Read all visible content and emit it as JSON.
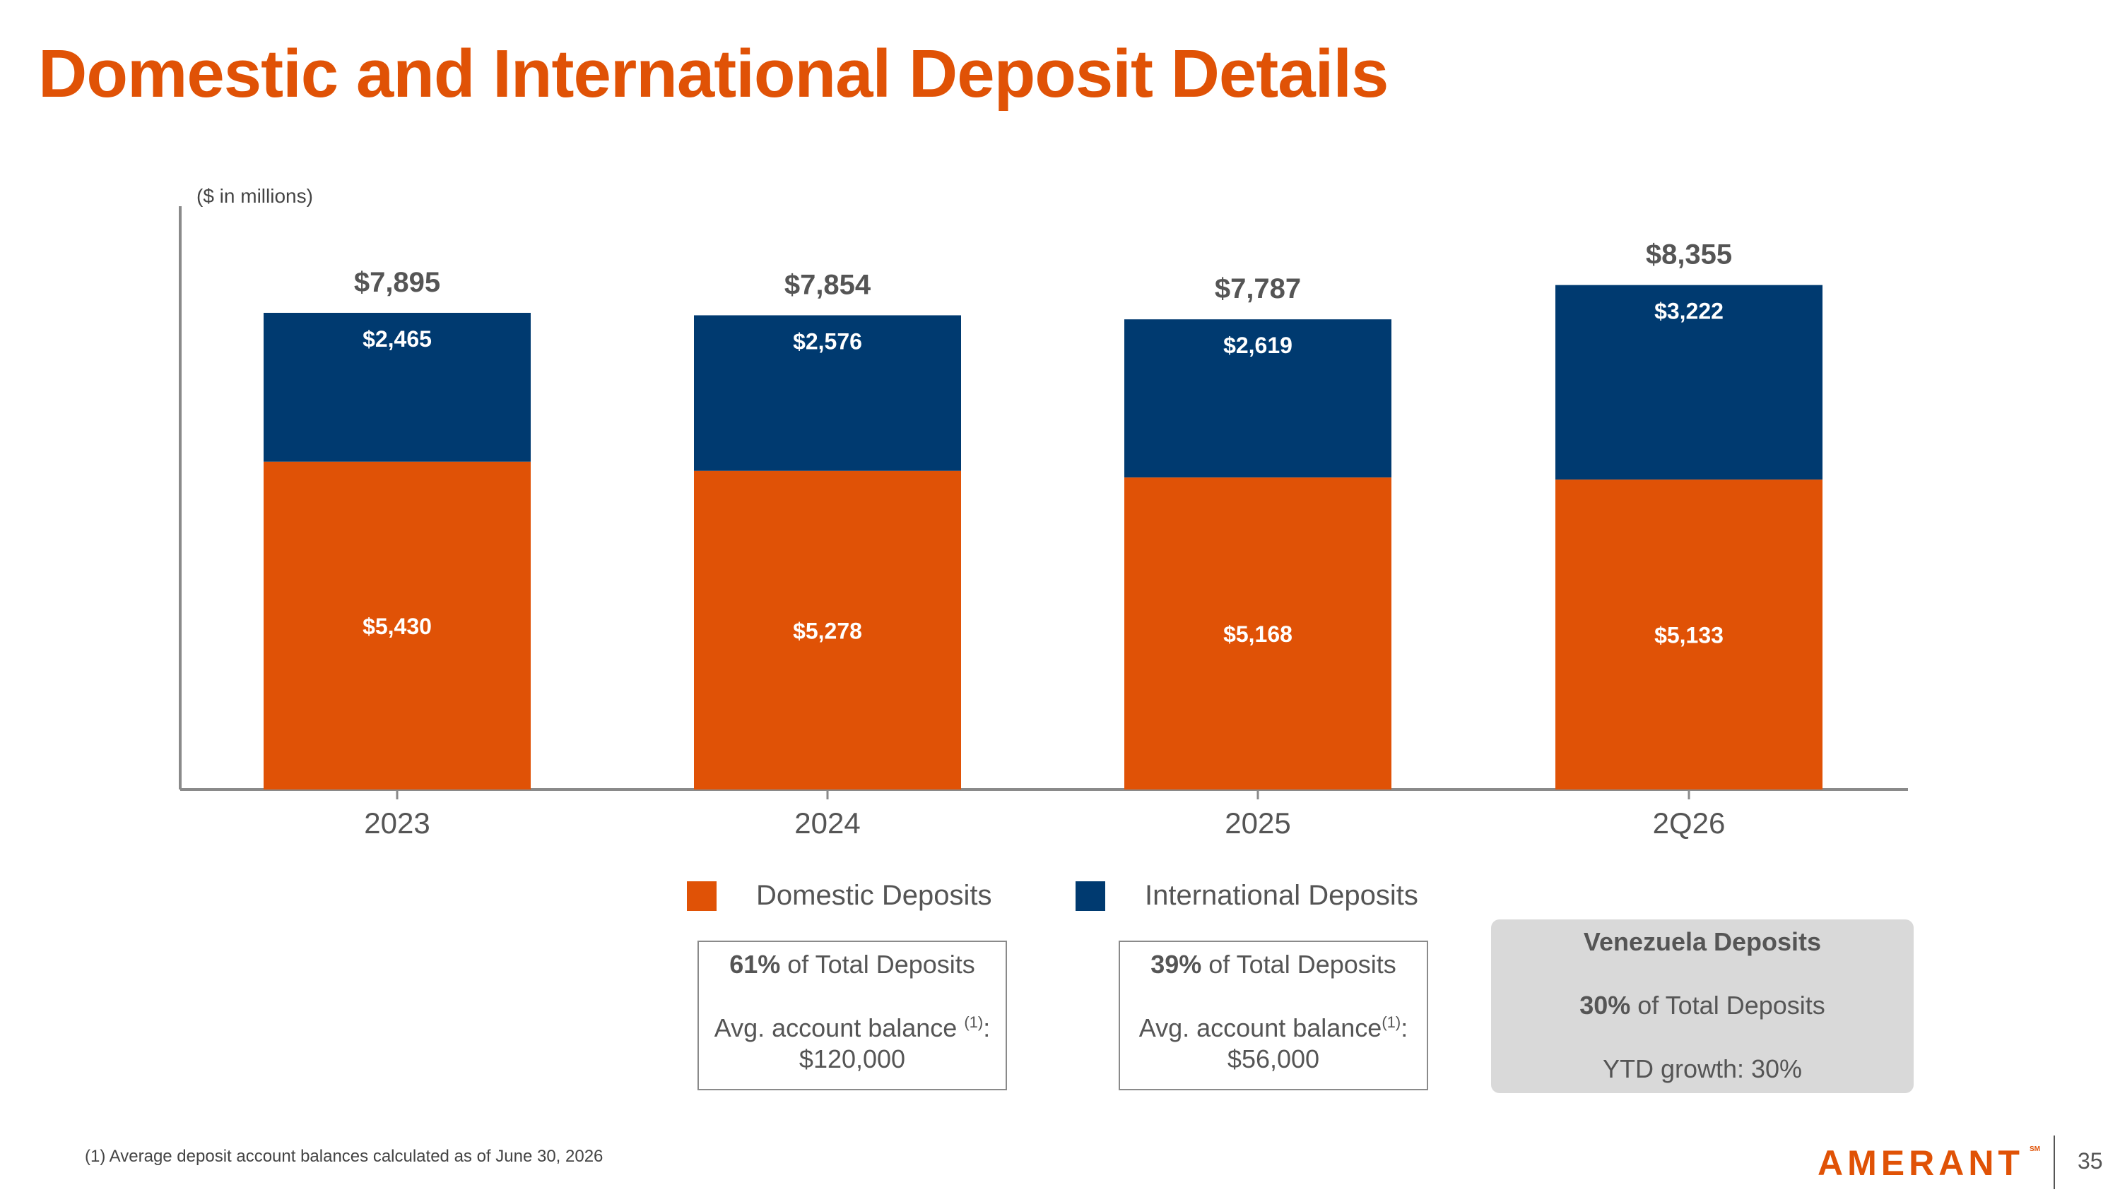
{
  "title": "Domestic and International Deposit Details",
  "units_label": "($ in millions)",
  "colors": {
    "title": "#e05206",
    "domestic": "#e05206",
    "international": "#003a70",
    "axis": "#8a8a8a",
    "total_label": "#555555"
  },
  "chart_data": {
    "type": "bar",
    "stacked": true,
    "categories": [
      "2023",
      "2024",
      "2025",
      "2Q26"
    ],
    "series": [
      {
        "name": "Domestic Deposits",
        "values": [
          5430,
          5278,
          5168,
          5133
        ],
        "labels": [
          "$5,430",
          "$5,278",
          "$5,168",
          "$5,133"
        ]
      },
      {
        "name": "International Deposits",
        "values": [
          2465,
          2576,
          2619,
          3222
        ],
        "labels": [
          "$2,465",
          "$2,576",
          "$2,619",
          "$3,222"
        ]
      }
    ],
    "totals": [
      7895,
      7854,
      7787,
      8355
    ],
    "total_labels": [
      "$7,895",
      "$7,854",
      "$7,787",
      "$8,355"
    ],
    "ylabel": "($ in millions)",
    "grid": false,
    "legend": "bottom"
  },
  "legend": [
    {
      "label": "Domestic Deposits",
      "color": "#e05206"
    },
    {
      "label": "International Deposits",
      "color": "#003a70"
    }
  ],
  "domestic_box": {
    "pct": "61%",
    "pct_text": " of Total Deposits",
    "balance_label": "Avg. account balance ",
    "footnote_ref": "(1)",
    "balance_suffix": ":",
    "balance_value": "$120,000"
  },
  "international_box": {
    "pct": "39%",
    "pct_text": " of Total Deposits",
    "balance_label": "Avg. account balance",
    "footnote_ref": "(1)",
    "balance_suffix": ":",
    "balance_value": "$56,000"
  },
  "venezuela_box": {
    "title": "Venezuela Deposits",
    "pct": "30%",
    "pct_text": " of Total Deposits",
    "growth": "YTD growth: 30%"
  },
  "footnote": "(1) Average deposit account balances calculated as of June 30, 2026",
  "logo_text": "AMERANT",
  "logo_mark": "SM",
  "page_number": "35"
}
